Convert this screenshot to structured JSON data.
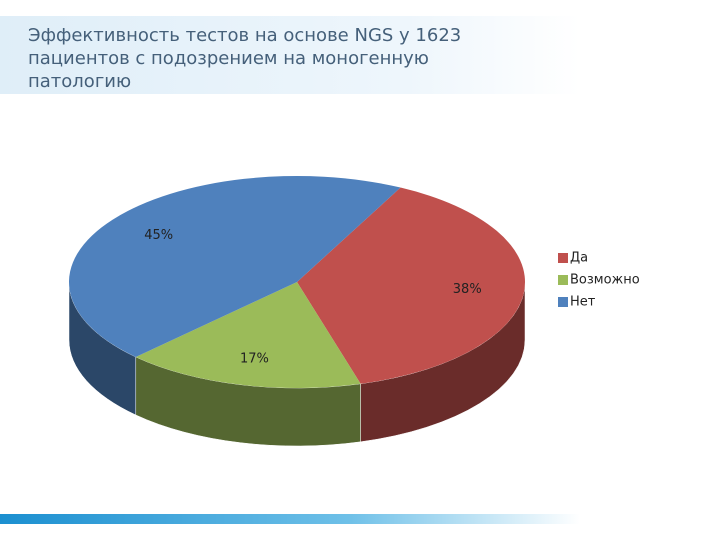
{
  "chart_data": {
    "type": "pie",
    "title": "Эффективность тестов на основе NGS у 1623 пациентов с подозрением на моногенную патологию",
    "categories": [
      "Да",
      "Возможно",
      "Нет"
    ],
    "values": [
      38,
      17,
      45
    ],
    "value_labels": [
      "38%",
      "17%",
      "45%"
    ],
    "colors": [
      "#c0504d",
      "#9bbb59",
      "#4f81bd"
    ],
    "legend": "right"
  }
}
